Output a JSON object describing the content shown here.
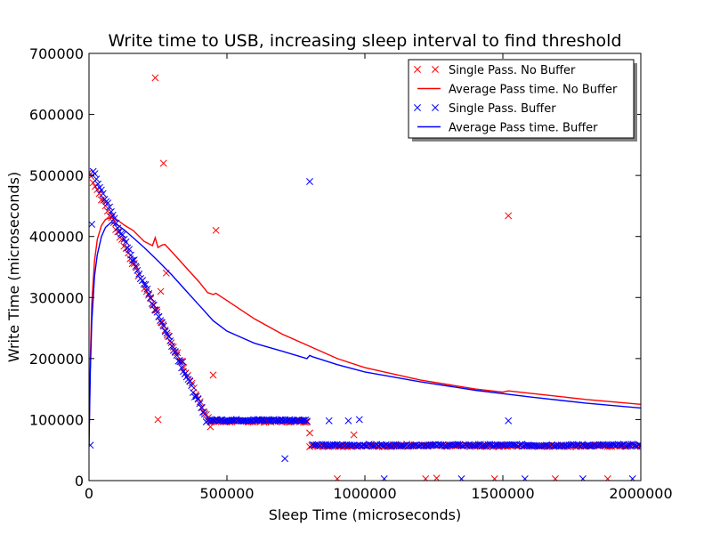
{
  "chart_data": {
    "type": "scatter",
    "title": "Write time to USB, increasing sleep interval to find threshold",
    "xlabel": "Sleep Time (microseconds)",
    "ylabel": "Write Time (microseconds)",
    "xlim": [
      0,
      2000000
    ],
    "ylim": [
      0,
      700000
    ],
    "xticks": [
      0,
      500000,
      1000000,
      1500000,
      2000000
    ],
    "xtick_labels": [
      "0",
      "500000",
      "1000000",
      "1500000",
      "2000000"
    ],
    "yticks": [
      0,
      100000,
      200000,
      300000,
      400000,
      500000,
      600000,
      700000
    ],
    "ytick_labels": [
      "0",
      "100000",
      "200000",
      "300000",
      "400000",
      "500000",
      "600000",
      "700000"
    ],
    "grid": false,
    "legend_position": "top-right",
    "series": [
      {
        "name": "Single Pass. No Buffer",
        "kind": "scatter",
        "marker": "x",
        "color": "#ff0000",
        "ramp": {
          "x_start": 0,
          "x_end": 440000,
          "y_start": 505000,
          "y_end": 95000,
          "count": 60
        },
        "floor": [
          {
            "x_start": 440000,
            "x_end": 790000,
            "y": 97000,
            "count": 55
          },
          {
            "x_start": 800000,
            "x_end": 2000000,
            "y": 57000,
            "count": 160
          }
        ],
        "outliers": [
          [
            240000,
            660000
          ],
          [
            270000,
            520000
          ],
          [
            460000,
            410000
          ],
          [
            280000,
            340000
          ],
          [
            260000,
            310000
          ],
          [
            450000,
            173000
          ],
          [
            250000,
            100000
          ],
          [
            440000,
            88000
          ],
          [
            800000,
            78000
          ],
          [
            960000,
            75000
          ],
          [
            1520000,
            434000
          ],
          [
            900000,
            3000
          ],
          [
            1220000,
            3000
          ],
          [
            1260000,
            4000
          ],
          [
            1470000,
            3000
          ],
          [
            1690000,
            3000
          ],
          [
            1880000,
            3000
          ]
        ]
      },
      {
        "name": "Average Pass time. No Buffer",
        "kind": "line",
        "color": "#ff0000",
        "x": [
          0,
          5000,
          10000,
          20000,
          30000,
          45000,
          60000,
          80000,
          100000,
          130000,
          160000,
          200000,
          230000,
          240000,
          250000,
          265000,
          275000,
          300000,
          350000,
          400000,
          430000,
          450000,
          460000,
          500000,
          600000,
          700000,
          800000,
          900000,
          1000000,
          1200000,
          1400000,
          1500000,
          1520000,
          1600000,
          1800000,
          2000000
        ],
        "y": [
          60000,
          200000,
          290000,
          360000,
          395000,
          418000,
          428000,
          431000,
          428000,
          418000,
          410000,
          392000,
          385000,
          398000,
          382000,
          386000,
          387000,
          375000,
          350000,
          325000,
          308000,
          305000,
          307000,
          295000,
          265000,
          240000,
          220000,
          200000,
          185000,
          165000,
          150000,
          145000,
          147000,
          143000,
          133000,
          125000
        ]
      },
      {
        "name": "Single Pass. Buffer",
        "kind": "scatter",
        "marker": "x",
        "color": "#0000ff",
        "ramp": {
          "x_start": 15000,
          "x_end": 425000,
          "y_start": 505000,
          "y_end": 100000,
          "count": 70
        },
        "floor": [
          {
            "x_start": 430000,
            "x_end": 790000,
            "y": 99000,
            "count": 70
          },
          {
            "x_start": 810000,
            "x_end": 2000000,
            "y": 58000,
            "count": 175
          }
        ],
        "outliers": [
          [
            5000,
            58000
          ],
          [
            10000,
            420000
          ],
          [
            800000,
            490000
          ],
          [
            710000,
            36000
          ],
          [
            870000,
            98000
          ],
          [
            940000,
            98000
          ],
          [
            980000,
            100000
          ],
          [
            340000,
            195000
          ],
          [
            1520000,
            98000
          ],
          [
            1070000,
            3000
          ],
          [
            1350000,
            3000
          ],
          [
            1580000,
            3000
          ],
          [
            1790000,
            3000
          ],
          [
            1970000,
            3000
          ]
        ]
      },
      {
        "name": "Average Pass time. Buffer",
        "kind": "line",
        "color": "#0000ff",
        "x": [
          0,
          5000,
          10000,
          20000,
          30000,
          45000,
          60000,
          80000,
          100000,
          130000,
          160000,
          200000,
          250000,
          300000,
          350000,
          400000,
          450000,
          500000,
          600000,
          700000,
          790000,
          800000,
          810000,
          900000,
          1000000,
          1200000,
          1400000,
          1600000,
          1800000,
          2000000
        ],
        "y": [
          60000,
          180000,
          260000,
          335000,
          370000,
          400000,
          415000,
          423000,
          420000,
          410000,
          398000,
          382000,
          360000,
          337000,
          312000,
          287000,
          262000,
          245000,
          225000,
          212000,
          200000,
          205000,
          203000,
          190000,
          178000,
          162000,
          148000,
          137000,
          127000,
          119000
        ]
      }
    ]
  }
}
